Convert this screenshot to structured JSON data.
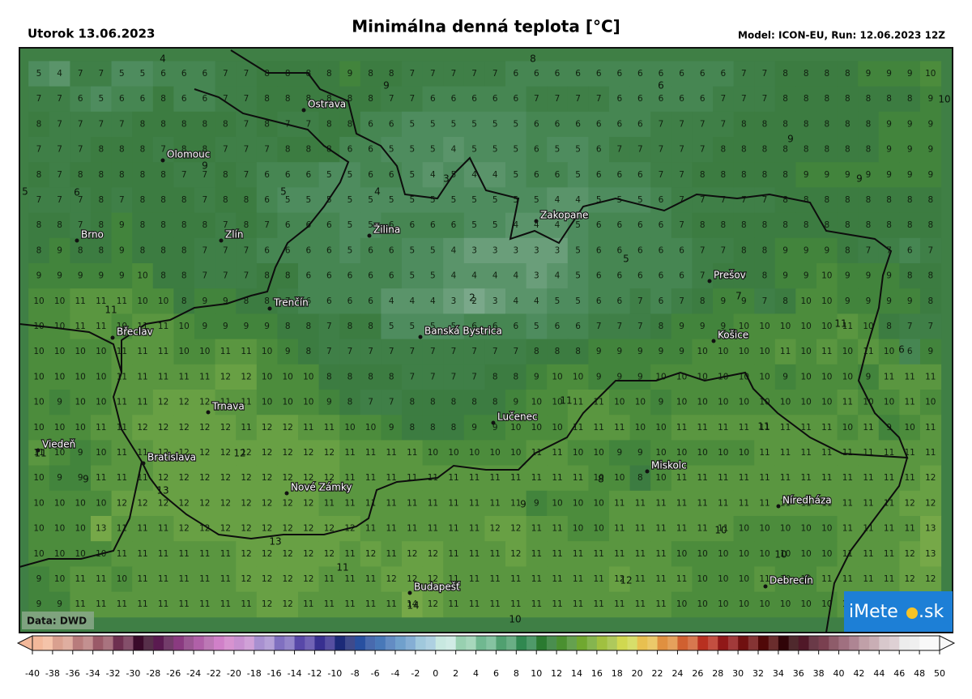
{
  "header": {
    "date": "Utorok 13.06.2023",
    "title": "Minimálna denná teplota [°C]",
    "model": "Model: ICON-EU, Run: 12.06.2023 12Z"
  },
  "map": {
    "grid": [
      [
        5,
        4,
        7,
        7,
        5,
        5,
        6,
        6,
        6,
        7,
        7,
        8,
        8,
        8,
        8,
        9,
        8,
        8,
        7,
        7,
        7,
        7,
        7,
        6,
        6,
        6,
        6,
        6,
        6,
        6,
        6,
        6,
        6,
        6,
        7,
        7,
        8,
        8,
        8,
        8,
        9,
        9,
        9,
        10
      ],
      [
        7,
        7,
        6,
        5,
        6,
        6,
        8,
        6,
        6,
        7,
        7,
        8,
        8,
        8,
        8,
        8,
        8,
        7,
        7,
        6,
        6,
        6,
        6,
        6,
        7,
        7,
        7,
        7,
        6,
        6,
        6,
        6,
        6,
        7,
        7,
        7,
        8,
        8,
        8,
        8,
        8,
        8,
        8,
        9
      ],
      [
        8,
        7,
        7,
        7,
        7,
        8,
        8,
        8,
        8,
        8,
        7,
        8,
        7,
        7,
        8,
        8,
        6,
        6,
        5,
        5,
        5,
        5,
        5,
        5,
        6,
        6,
        6,
        6,
        6,
        6,
        7,
        7,
        7,
        7,
        8,
        8,
        8,
        8,
        8,
        8,
        8,
        9,
        9,
        9
      ],
      [
        7,
        7,
        7,
        8,
        8,
        8,
        7,
        8,
        8,
        7,
        7,
        7,
        8,
        8,
        8,
        6,
        6,
        5,
        5,
        5,
        4,
        5,
        5,
        5,
        6,
        5,
        5,
        6,
        7,
        7,
        7,
        7,
        7,
        8,
        8,
        8,
        8,
        8,
        8,
        8,
        8,
        9,
        9,
        9
      ],
      [
        8,
        7,
        8,
        8,
        8,
        8,
        8,
        7,
        7,
        8,
        7,
        6,
        6,
        6,
        5,
        5,
        6,
        6,
        5,
        4,
        5,
        4,
        4,
        5,
        6,
        6,
        5,
        6,
        6,
        6,
        7,
        7,
        8,
        8,
        8,
        8,
        8,
        9,
        9,
        9,
        9,
        9,
        9,
        9
      ],
      [
        7,
        7,
        7,
        8,
        7,
        8,
        8,
        8,
        7,
        8,
        8,
        6,
        5,
        5,
        5,
        5,
        5,
        5,
        5,
        5,
        5,
        5,
        5,
        5,
        5,
        4,
        4,
        5,
        5,
        5,
        6,
        7,
        7,
        7,
        7,
        7,
        8,
        8,
        8,
        8,
        8,
        8,
        8,
        8
      ],
      [
        8,
        8,
        7,
        8,
        9,
        8,
        8,
        8,
        8,
        7,
        8,
        7,
        6,
        6,
        6,
        5,
        5,
        6,
        6,
        6,
        6,
        5,
        5,
        4,
        4,
        4,
        5,
        6,
        6,
        6,
        6,
        7,
        8,
        8,
        8,
        8,
        8,
        8,
        8,
        8,
        8,
        8,
        8,
        8
      ],
      [
        8,
        9,
        8,
        8,
        9,
        8,
        8,
        8,
        7,
        7,
        7,
        6,
        6,
        6,
        6,
        5,
        6,
        6,
        5,
        5,
        4,
        3,
        3,
        3,
        3,
        3,
        5,
        6,
        6,
        6,
        6,
        6,
        7,
        7,
        8,
        8,
        9,
        9,
        9,
        8,
        7,
        7,
        6,
        7
      ],
      [
        9,
        9,
        9,
        9,
        9,
        10,
        8,
        8,
        7,
        7,
        7,
        8,
        8,
        6,
        6,
        6,
        6,
        6,
        5,
        5,
        4,
        4,
        4,
        4,
        3,
        4,
        5,
        6,
        6,
        6,
        6,
        6,
        7,
        8,
        8,
        8,
        9,
        9,
        10,
        9,
        9,
        9,
        8,
        8
      ],
      [
        10,
        10,
        11,
        11,
        11,
        10,
        10,
        8,
        9,
        9,
        8,
        8,
        7,
        6,
        6,
        6,
        6,
        4,
        4,
        4,
        3,
        2,
        3,
        4,
        4,
        5,
        5,
        6,
        6,
        7,
        6,
        7,
        8,
        9,
        9,
        7,
        8,
        10,
        10,
        9,
        9,
        9,
        9,
        8
      ],
      [
        10,
        10,
        11,
        11,
        10,
        11,
        11,
        10,
        9,
        9,
        9,
        9,
        8,
        8,
        7,
        8,
        8,
        5,
        5,
        5,
        5,
        6,
        6,
        6,
        5,
        6,
        6,
        7,
        7,
        7,
        8,
        9,
        9,
        9,
        10,
        10,
        10,
        10,
        10,
        11,
        10,
        8,
        7,
        7
      ],
      [
        10,
        10,
        10,
        10,
        11,
        11,
        11,
        10,
        10,
        11,
        11,
        10,
        9,
        8,
        7,
        7,
        7,
        7,
        7,
        7,
        7,
        7,
        7,
        7,
        8,
        8,
        8,
        9,
        9,
        9,
        9,
        9,
        10,
        10,
        10,
        10,
        11,
        10,
        11,
        10,
        11,
        10,
        6,
        9
      ],
      [
        10,
        10,
        10,
        10,
        11,
        11,
        11,
        11,
        11,
        12,
        12,
        10,
        10,
        10,
        8,
        8,
        8,
        8,
        7,
        7,
        7,
        7,
        8,
        8,
        9,
        10,
        10,
        9,
        9,
        9,
        10,
        10,
        10,
        10,
        10,
        10,
        9,
        10,
        10,
        10,
        9,
        11,
        11,
        11
      ],
      [
        10,
        9,
        10,
        10,
        11,
        11,
        12,
        12,
        12,
        11,
        11,
        10,
        10,
        10,
        9,
        8,
        7,
        7,
        8,
        8,
        8,
        8,
        8,
        9,
        10,
        10,
        11,
        11,
        10,
        10,
        9,
        10,
        10,
        10,
        10,
        10,
        10,
        10,
        10,
        11,
        10,
        10,
        11,
        10
      ],
      [
        10,
        10,
        10,
        11,
        11,
        12,
        12,
        12,
        12,
        12,
        11,
        12,
        12,
        11,
        11,
        10,
        10,
        9,
        8,
        8,
        8,
        9,
        9,
        10,
        10,
        10,
        11,
        11,
        11,
        10,
        10,
        11,
        11,
        11,
        11,
        11,
        11,
        11,
        11,
        10,
        11,
        9,
        10,
        11
      ],
      [
        11,
        10,
        9,
        10,
        11,
        11,
        12,
        12,
        12,
        12,
        12,
        12,
        12,
        12,
        12,
        11,
        11,
        11,
        11,
        10,
        10,
        10,
        10,
        10,
        11,
        11,
        10,
        10,
        9,
        9,
        10,
        10,
        10,
        10,
        10,
        11,
        11,
        11,
        11,
        11,
        11,
        11,
        11,
        11
      ],
      [
        10,
        9,
        9,
        11,
        11,
        11,
        12,
        12,
        12,
        12,
        12,
        12,
        12,
        12,
        12,
        11,
        11,
        11,
        11,
        11,
        11,
        11,
        11,
        11,
        11,
        11,
        11,
        10,
        10,
        8,
        10,
        11,
        11,
        11,
        11,
        11,
        11,
        11,
        11,
        11,
        11,
        11,
        11,
        12
      ],
      [
        10,
        10,
        10,
        10,
        12,
        12,
        12,
        12,
        12,
        12,
        12,
        12,
        12,
        12,
        11,
        11,
        11,
        11,
        11,
        11,
        11,
        11,
        11,
        11,
        9,
        10,
        10,
        10,
        11,
        11,
        11,
        11,
        11,
        11,
        11,
        11,
        11,
        11,
        11,
        11,
        11,
        11,
        12,
        12
      ],
      [
        10,
        10,
        10,
        13,
        11,
        11,
        11,
        12,
        12,
        12,
        12,
        12,
        12,
        12,
        12,
        12,
        11,
        11,
        11,
        11,
        11,
        11,
        12,
        12,
        11,
        11,
        10,
        10,
        11,
        11,
        11,
        11,
        11,
        11,
        10,
        10,
        10,
        10,
        10,
        11,
        11,
        11,
        11,
        13
      ],
      [
        10,
        10,
        10,
        10,
        11,
        11,
        11,
        11,
        11,
        11,
        12,
        12,
        12,
        12,
        12,
        11,
        12,
        11,
        12,
        12,
        11,
        11,
        11,
        12,
        11,
        11,
        11,
        11,
        11,
        11,
        11,
        10,
        10,
        10,
        10,
        10,
        10,
        10,
        10,
        11,
        11,
        11,
        12,
        13
      ],
      [
        9,
        10,
        11,
        11,
        10,
        11,
        11,
        11,
        11,
        11,
        12,
        12,
        12,
        12,
        11,
        11,
        11,
        12,
        12,
        12,
        11,
        11,
        11,
        11,
        11,
        11,
        11,
        11,
        12,
        11,
        11,
        11,
        10,
        10,
        10,
        11,
        10,
        10,
        11,
        11,
        11,
        11,
        12,
        12
      ],
      [
        9,
        9,
        11,
        11,
        11,
        11,
        11,
        11,
        11,
        11,
        11,
        12,
        12,
        11,
        11,
        11,
        11,
        11,
        14,
        12,
        11,
        11,
        11,
        11,
        11,
        11,
        11,
        11,
        11,
        11,
        11,
        10,
        10,
        10,
        10,
        10,
        10,
        10,
        10,
        11,
        10,
        10,
        11,
        11
      ]
    ],
    "contour_labels": [
      4,
      8,
      9,
      6,
      10,
      9,
      3,
      4,
      5,
      5,
      6,
      9,
      9,
      5,
      2,
      11,
      7,
      11,
      6,
      11,
      11,
      12,
      11,
      9,
      13,
      8,
      9,
      10,
      13,
      10,
      11,
      12,
      14,
      10
    ],
    "cities": [
      "Ostrava",
      "Olomouc",
      "Brno",
      "Zlín",
      "Žilina",
      "Zakopane",
      "Prešov",
      "Trenčín",
      "Břeclav",
      "Banská Bystrica",
      "Košice",
      "Trnava",
      "Lučenec",
      "Viedeň",
      "Bratislava",
      "Miskolc",
      "Nové Zámky",
      "Níredháza",
      "Budapešť",
      "Debrecín"
    ],
    "source": "Data: DWD"
  },
  "logo": {
    "left": "iMete",
    "right": ".sk"
  },
  "colorbar": {
    "ticks": [
      -40,
      -38,
      -36,
      -34,
      -32,
      -30,
      -28,
      -26,
      -24,
      -22,
      -20,
      -18,
      -16,
      -14,
      -12,
      -10,
      -8,
      -6,
      -4,
      -2,
      0,
      2,
      4,
      6,
      8,
      10,
      12,
      14,
      16,
      18,
      20,
      22,
      24,
      26,
      28,
      30,
      32,
      34,
      36,
      38,
      40,
      42,
      44,
      46,
      48,
      50
    ],
    "colors": [
      "#f2b89a",
      "#d9a08f",
      "#b87c7c",
      "#9a5a68",
      "#6e3050",
      "#3a0a2a",
      "#5a1a50",
      "#8a3a80",
      "#b060a8",
      "#d080c8",
      "#c890d0",
      "#a890d0",
      "#8070c0",
      "#5848a8",
      "#383090",
      "#1c2a78",
      "#2850a0",
      "#4878b8",
      "#70a0cc",
      "#a0c8dc",
      "#c8e8e0",
      "#98d0b0",
      "#70b890",
      "#50a070",
      "#308850",
      "#2a7a30",
      "#4a9030",
      "#70a830",
      "#a0c040",
      "#d0d850",
      "#e8c050",
      "#e09040",
      "#d06030",
      "#b83020",
      "#901818",
      "#701010",
      "#500808",
      "#300408",
      "#501828",
      "#7a4050",
      "#a07080",
      "#c0a0a8",
      "#d8c8cc",
      "#ececec",
      "#f8f8f8"
    ]
  }
}
